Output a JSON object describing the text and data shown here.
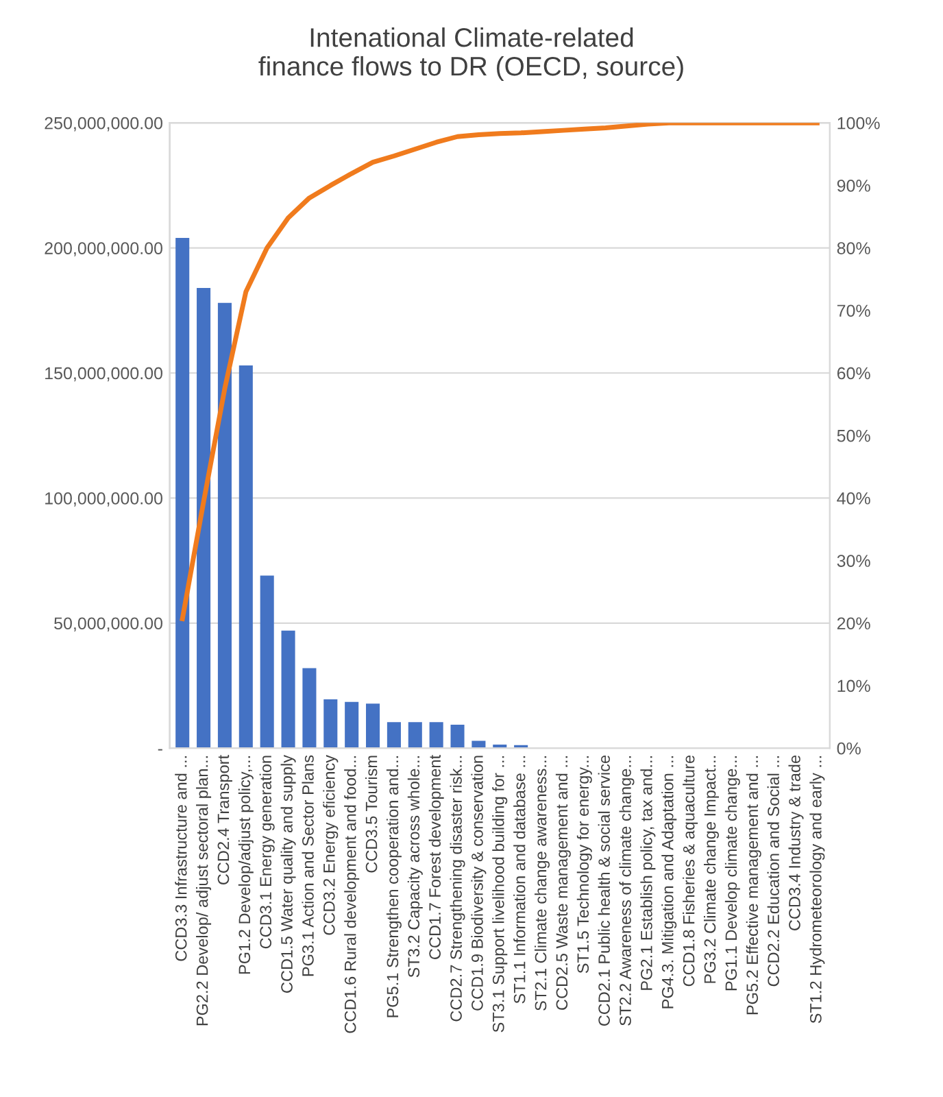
{
  "chart_data": {
    "type": "bar",
    "title": "Intenational Climate-related\nfinance flows to DR (OECD, source)",
    "categories": [
      "CCD3.3 Infrastructure and ...",
      "PG2.2 Develop/ adjust sectoral plan...",
      "CCD2.4 Transport",
      "PG1.2 Develop/adjust policy,...",
      "CCD3.1 Energy generation",
      "CCD1.5 Water quality and supply",
      "PG3.1 Action and Sector Plans",
      "CCD3.2 Energy eficiency",
      "CCD1.6 Rural development and food...",
      "CCD3.5 Tourism",
      "PG5.1 Strengthen cooperation and...",
      "ST3.2 Capacity across whole...",
      "CCD1.7 Forest development",
      "CCD2.7 Strengthening disaster risk...",
      "CCD1.9 Biodiversity & conservation",
      "ST3.1 Support livelihood building for ...",
      "ST1.1 Information and database ...",
      "ST2.1 Climate change awareness...",
      "CCD2.5 Waste management and ...",
      "ST1.5 Technology for energy...",
      "CCD2.1 Public health & social service",
      "ST2.2 Awareness of climate change...",
      "PG2.1 Establish policy, tax and...",
      "PG4.3. Mitigation and Adaptation ...",
      "CCD1.8 Fisheries & aquaculture",
      "PG3.2 Climate change Impact...",
      "PG1.1 Develop climate change...",
      "PG5.2 Effective management and ...",
      "CCD2.2 Education and Social ...",
      "CCD3.4 Industry & trade",
      "ST1.2 Hydrometeorology and early ..."
    ],
    "series": [
      {
        "color": "#4472c4",
        "values": [
          204000000,
          184000000,
          178000000,
          153000000,
          69000000,
          47000000,
          32000000,
          19500000,
          18500000,
          17800000,
          10400000,
          10400000,
          10400000,
          9400000,
          2900000,
          1400000,
          1200000,
          300000,
          300000,
          300000,
          300000,
          300000,
          300000,
          300000,
          0,
          0,
          0,
          0,
          0,
          0,
          0
        ]
      },
      {
        "type": "line",
        "axis": "y2",
        "color": "#f07b1d",
        "values": [
          20.7,
          39.4,
          57.5,
          73,
          80,
          84.8,
          88,
          90,
          91.9,
          93.7,
          94.7,
          95.8,
          96.9,
          97.8,
          98.1,
          98.3,
          98.4,
          98.6,
          98.8,
          99,
          99.2,
          99.5,
          99.8,
          100,
          100,
          100,
          100,
          100,
          100,
          100,
          100
        ]
      }
    ],
    "ylim": [
      0,
      250000000
    ],
    "yticks": [
      {
        "value": 0,
        "label": "-"
      },
      {
        "value": 50000000,
        "label": "50,000,000.00"
      },
      {
        "value": 100000000,
        "label": "100,000,000.00"
      },
      {
        "value": 150000000,
        "label": "150,000,000.00"
      },
      {
        "value": 200000000,
        "label": "200,000,000.00"
      },
      {
        "value": 250000000,
        "label": "250,000,000.00"
      }
    ],
    "y2lim": [
      0,
      100
    ],
    "y2ticks": [
      {
        "value": 0,
        "label": "0%"
      },
      {
        "value": 10,
        "label": "10%"
      },
      {
        "value": 20,
        "label": "20%"
      },
      {
        "value": 30,
        "label": "30%"
      },
      {
        "value": 40,
        "label": "40%"
      },
      {
        "value": 50,
        "label": "50%"
      },
      {
        "value": 60,
        "label": "60%"
      },
      {
        "value": 70,
        "label": "70%"
      },
      {
        "value": 80,
        "label": "80%"
      },
      {
        "value": 90,
        "label": "90%"
      },
      {
        "value": 100,
        "label": "100%"
      }
    ],
    "grid": "y",
    "legend": false
  }
}
